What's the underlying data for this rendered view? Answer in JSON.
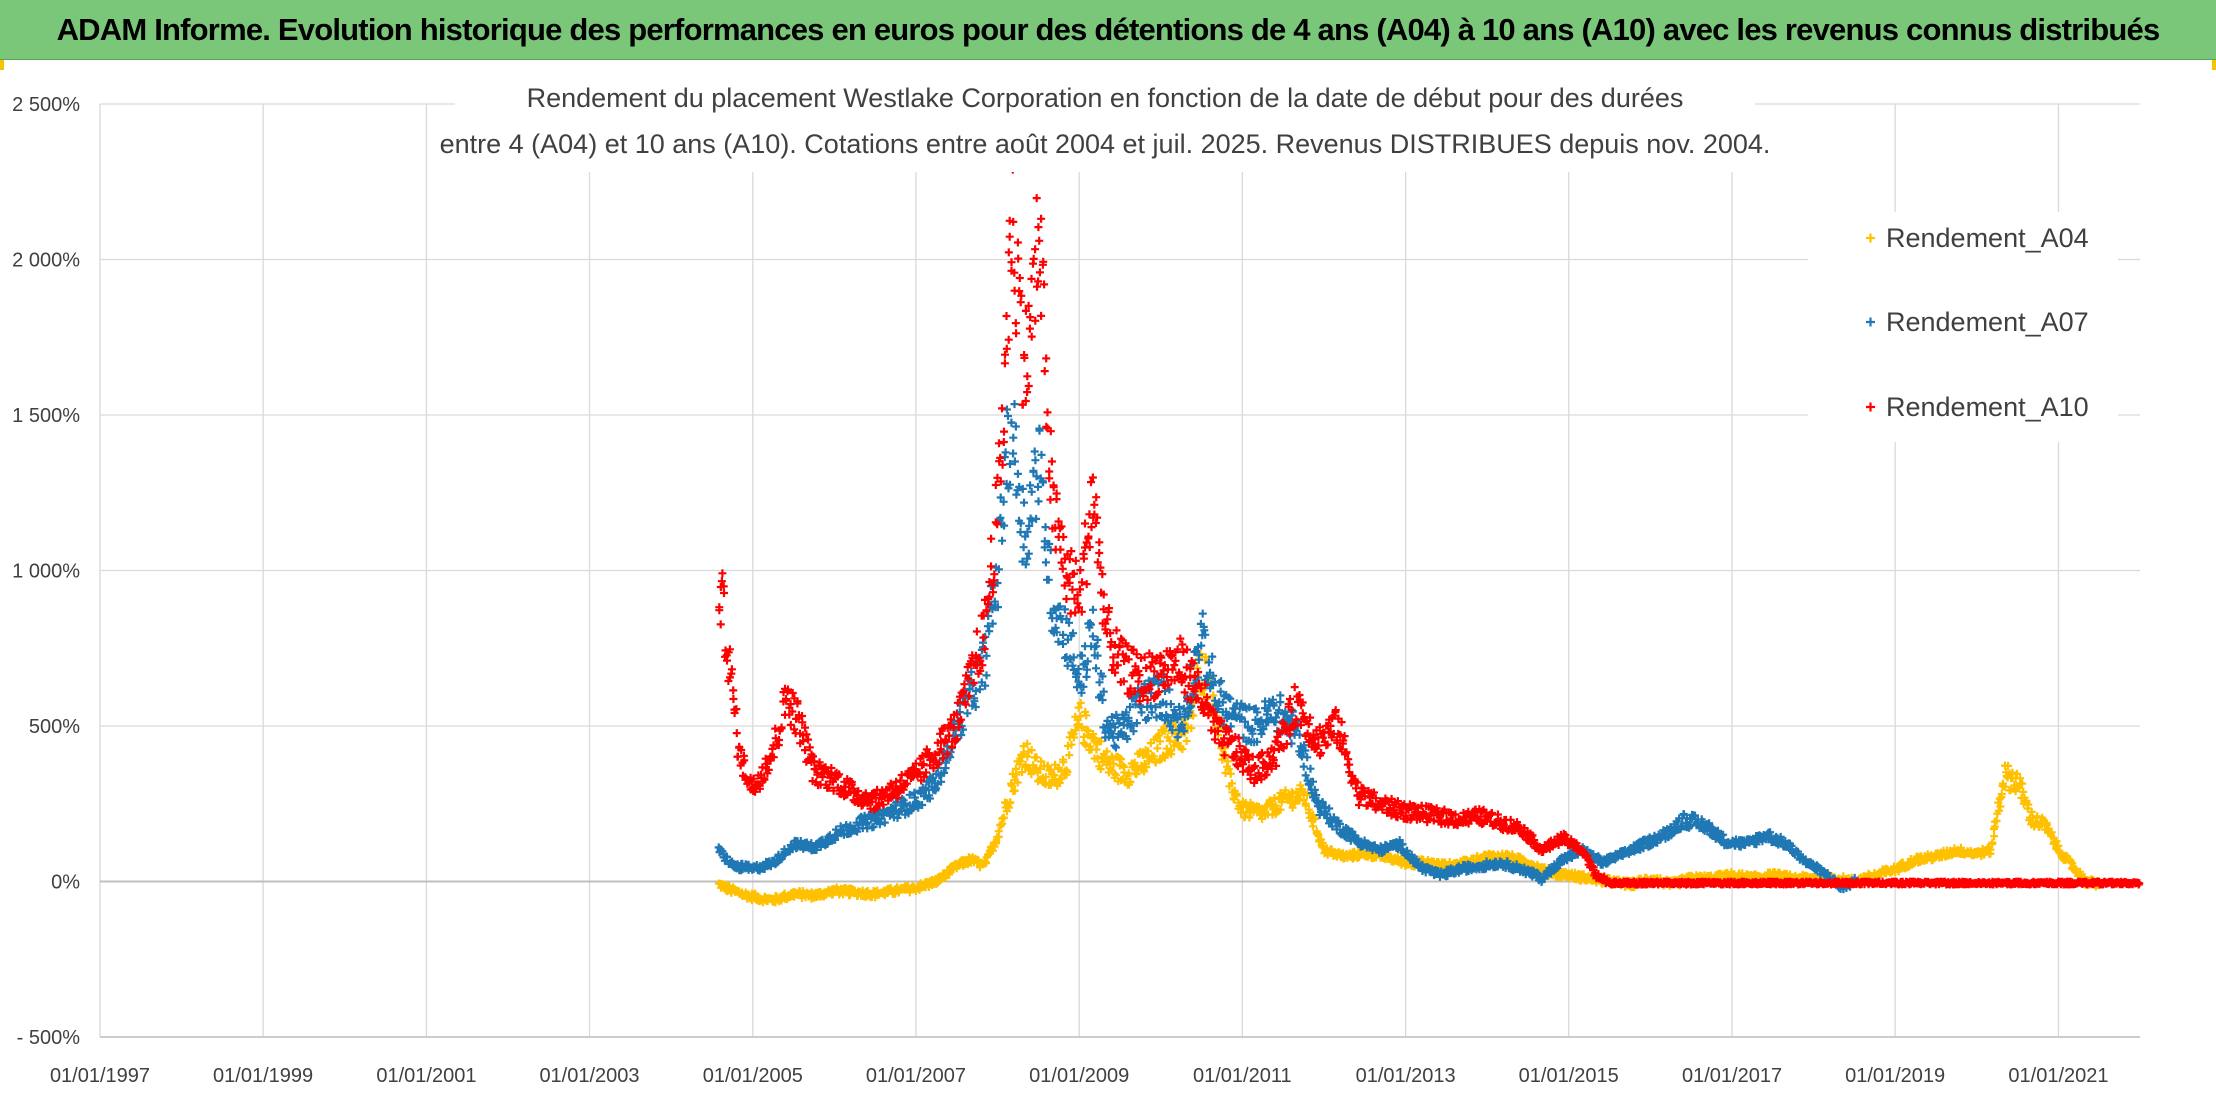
{
  "banner": {
    "title": "ADAM Informe. Evolution historique des performances en euros pour des détentions de 4 ans (A04) à 10 ans (A10) avec les revenus connus distribués"
  },
  "colors": {
    "banner": "#7ac77a",
    "accent": "#f3c400",
    "A04": "#ffc000",
    "A07": "#1f77b4",
    "A10": "#ff0000",
    "grid": "#d9d9d9",
    "text": "#404040"
  },
  "chart_data": {
    "type": "scatter",
    "title_lines": [
      "Rendement du placement Westlake Corporation en fonction de la date de début pour des durées",
      "entre 4 (A04) et 10 ans (A10). Cotations entre août 2004 et juil. 2025. Revenus DISTRIBUES depuis nov. 2004."
    ],
    "xlabel": "",
    "ylabel": "",
    "x_range": [
      "1997-01-01",
      "2022-01-01"
    ],
    "x_ticks": [
      "01/01/1997",
      "01/01/1999",
      "01/01/2001",
      "01/01/2003",
      "01/01/2005",
      "01/01/2007",
      "01/01/2009",
      "01/01/2011",
      "01/01/2013",
      "01/01/2015",
      "01/01/2017",
      "01/01/2019",
      "01/01/2021"
    ],
    "y_range": [
      -500,
      2500
    ],
    "y_ticks": [
      -500,
      0,
      500,
      1000,
      1500,
      2000,
      2500
    ],
    "y_tick_labels": [
      "- 500%",
      "0%",
      "500%",
      "1 000%",
      "1 500%",
      "2 000%",
      "2 500%"
    ],
    "grid": true,
    "legend_position": "top-right",
    "marker": "+",
    "series": [
      {
        "name": "Rendement_A04",
        "color": "#ffc000",
        "end": "2021-07-01",
        "points": [
          [
            "2004-08-01",
            -10
          ],
          [
            "2004-10-01",
            -30
          ],
          [
            "2005-01-01",
            -50
          ],
          [
            "2005-04-01",
            -60
          ],
          [
            "2005-07-01",
            -40
          ],
          [
            "2005-10-01",
            -45
          ],
          [
            "2006-01-01",
            -30
          ],
          [
            "2006-04-01",
            -35
          ],
          [
            "2006-07-01",
            -40
          ],
          [
            "2006-10-01",
            -30
          ],
          [
            "2007-01-01",
            -20
          ],
          [
            "2007-04-01",
            0
          ],
          [
            "2007-07-01",
            50
          ],
          [
            "2007-09-01",
            70
          ],
          [
            "2007-11-01",
            50
          ],
          [
            "2008-01-01",
            150
          ],
          [
            "2008-03-01",
            300
          ],
          [
            "2008-05-01",
            420
          ],
          [
            "2008-07-01",
            350
          ],
          [
            "2008-09-01",
            330
          ],
          [
            "2008-11-01",
            380
          ],
          [
            "2009-01-01",
            520
          ],
          [
            "2009-03-01",
            450
          ],
          [
            "2009-05-01",
            380
          ],
          [
            "2009-08-01",
            350
          ],
          [
            "2009-11-01",
            390
          ],
          [
            "2010-02-01",
            460
          ],
          [
            "2010-05-01",
            480
          ],
          [
            "2010-07-01",
            700
          ],
          [
            "2010-09-01",
            550
          ],
          [
            "2010-11-01",
            320
          ],
          [
            "2011-01-01",
            230
          ],
          [
            "2011-04-01",
            220
          ],
          [
            "2011-07-01",
            260
          ],
          [
            "2011-10-01",
            280
          ],
          [
            "2012-01-01",
            100
          ],
          [
            "2012-04-01",
            80
          ],
          [
            "2012-07-01",
            90
          ],
          [
            "2012-10-01",
            80
          ],
          [
            "2013-01-01",
            60
          ],
          [
            "2013-04-01",
            60
          ],
          [
            "2013-07-01",
            50
          ],
          [
            "2013-10-01",
            60
          ],
          [
            "2014-01-01",
            80
          ],
          [
            "2014-04-01",
            80
          ],
          [
            "2014-07-01",
            60
          ],
          [
            "2014-10-01",
            30
          ],
          [
            "2015-01-01",
            20
          ],
          [
            "2015-04-01",
            10
          ],
          [
            "2015-07-01",
            0
          ],
          [
            "2015-10-01",
            -10
          ],
          [
            "2016-01-01",
            10
          ],
          [
            "2016-04-01",
            -10
          ],
          [
            "2016-07-01",
            10
          ],
          [
            "2016-10-01",
            10
          ],
          [
            "2017-01-01",
            20
          ],
          [
            "2017-04-01",
            10
          ],
          [
            "2017-07-01",
            20
          ],
          [
            "2017-10-01",
            10
          ],
          [
            "2018-01-01",
            10
          ],
          [
            "2018-04-01",
            10
          ],
          [
            "2018-07-01",
            0
          ],
          [
            "2018-10-01",
            20
          ],
          [
            "2019-01-01",
            40
          ],
          [
            "2019-04-01",
            70
          ],
          [
            "2019-07-01",
            80
          ],
          [
            "2019-10-01",
            100
          ],
          [
            "2020-01-01",
            90
          ],
          [
            "2020-03-01",
            100
          ],
          [
            "2020-05-01",
            340
          ],
          [
            "2020-07-01",
            320
          ],
          [
            "2020-09-01",
            200
          ],
          [
            "2020-11-01",
            180
          ],
          [
            "2021-01-01",
            100
          ],
          [
            "2021-03-01",
            50
          ],
          [
            "2021-05-01",
            0
          ],
          [
            "2021-07-01",
            -10
          ]
        ]
      },
      {
        "name": "Rendement_A07",
        "color": "#1f77b4",
        "end": "2018-07-01",
        "points": [
          [
            "2004-08-01",
            100
          ],
          [
            "2004-10-01",
            50
          ],
          [
            "2005-01-01",
            40
          ],
          [
            "2005-04-01",
            60
          ],
          [
            "2005-07-01",
            120
          ],
          [
            "2005-10-01",
            110
          ],
          [
            "2006-01-01",
            150
          ],
          [
            "2006-04-01",
            180
          ],
          [
            "2006-07-01",
            200
          ],
          [
            "2006-10-01",
            230
          ],
          [
            "2007-01-01",
            260
          ],
          [
            "2007-04-01",
            320
          ],
          [
            "2007-07-01",
            500
          ],
          [
            "2007-09-01",
            600
          ],
          [
            "2007-11-01",
            700
          ],
          [
            "2008-01-01",
            1000
          ],
          [
            "2008-02-01",
            1300
          ],
          [
            "2008-03-01",
            1480
          ],
          [
            "2008-05-01",
            1100
          ],
          [
            "2008-07-01",
            1350
          ],
          [
            "2008-09-01",
            900
          ],
          [
            "2008-11-01",
            800
          ],
          [
            "2009-01-01",
            650
          ],
          [
            "2009-03-01",
            800
          ],
          [
            "2009-05-01",
            500
          ],
          [
            "2009-07-01",
            470
          ],
          [
            "2009-10-01",
            580
          ],
          [
            "2010-01-01",
            600
          ],
          [
            "2010-04-01",
            500
          ],
          [
            "2010-07-01",
            780
          ],
          [
            "2010-09-01",
            600
          ],
          [
            "2010-12-01",
            520
          ],
          [
            "2011-03-01",
            500
          ],
          [
            "2011-06-01",
            550
          ],
          [
            "2011-09-01",
            480
          ],
          [
            "2011-12-01",
            250
          ],
          [
            "2012-03-01",
            180
          ],
          [
            "2012-06-01",
            130
          ],
          [
            "2012-09-01",
            100
          ],
          [
            "2012-12-01",
            120
          ],
          [
            "2013-03-01",
            50
          ],
          [
            "2013-06-01",
            20
          ],
          [
            "2013-09-01",
            40
          ],
          [
            "2013-12-01",
            50
          ],
          [
            "2014-03-01",
            60
          ],
          [
            "2014-06-01",
            40
          ],
          [
            "2014-09-01",
            10
          ],
          [
            "2014-12-01",
            70
          ],
          [
            "2015-03-01",
            100
          ],
          [
            "2015-06-01",
            60
          ],
          [
            "2015-09-01",
            90
          ],
          [
            "2015-12-01",
            120
          ],
          [
            "2016-03-01",
            150
          ],
          [
            "2016-06-01",
            200
          ],
          [
            "2016-09-01",
            180
          ],
          [
            "2016-12-01",
            130
          ],
          [
            "2017-03-01",
            120
          ],
          [
            "2017-06-01",
            150
          ],
          [
            "2017-09-01",
            120
          ],
          [
            "2017-12-01",
            60
          ],
          [
            "2018-03-01",
            20
          ],
          [
            "2018-05-01",
            -20
          ],
          [
            "2018-07-01",
            0
          ]
        ]
      },
      {
        "name": "Rendement_A10",
        "color": "#ff0000",
        "end": "2015-07-01",
        "flat_until": "2021-12-31",
        "flat_value": -5,
        "points": [
          [
            "2004-08-01",
            960
          ],
          [
            "2004-09-01",
            800
          ],
          [
            "2004-10-01",
            600
          ],
          [
            "2004-11-01",
            400
          ],
          [
            "2005-01-01",
            300
          ],
          [
            "2005-04-01",
            420
          ],
          [
            "2005-06-01",
            600
          ],
          [
            "2005-08-01",
            500
          ],
          [
            "2005-10-01",
            350
          ],
          [
            "2006-01-01",
            330
          ],
          [
            "2006-04-01",
            280
          ],
          [
            "2006-07-01",
            260
          ],
          [
            "2006-10-01",
            300
          ],
          [
            "2007-01-01",
            340
          ],
          [
            "2007-04-01",
            420
          ],
          [
            "2007-07-01",
            500
          ],
          [
            "2007-09-01",
            650
          ],
          [
            "2007-11-01",
            800
          ],
          [
            "2008-01-01",
            1200
          ],
          [
            "2008-02-01",
            1600
          ],
          [
            "2008-03-01",
            2150
          ],
          [
            "2008-05-01",
            1650
          ],
          [
            "2008-06-01",
            1800
          ],
          [
            "2008-07-01",
            2100
          ],
          [
            "2008-09-01",
            1200
          ],
          [
            "2008-11-01",
            1000
          ],
          [
            "2009-01-01",
            900
          ],
          [
            "2009-03-01",
            1250
          ],
          [
            "2009-05-01",
            800
          ],
          [
            "2009-07-01",
            700
          ],
          [
            "2009-10-01",
            650
          ],
          [
            "2010-01-01",
            680
          ],
          [
            "2010-04-01",
            700
          ],
          [
            "2010-07-01",
            600
          ],
          [
            "2010-09-01",
            480
          ],
          [
            "2010-12-01",
            420
          ],
          [
            "2011-03-01",
            350
          ],
          [
            "2011-06-01",
            420
          ],
          [
            "2011-09-01",
            580
          ],
          [
            "2011-12-01",
            450
          ],
          [
            "2012-03-01",
            500
          ],
          [
            "2012-06-01",
            280
          ],
          [
            "2012-09-01",
            250
          ],
          [
            "2012-12-01",
            230
          ],
          [
            "2013-03-01",
            220
          ],
          [
            "2013-06-01",
            210
          ],
          [
            "2013-09-01",
            200
          ],
          [
            "2013-12-01",
            210
          ],
          [
            "2014-03-01",
            190
          ],
          [
            "2014-06-01",
            170
          ],
          [
            "2014-09-01",
            100
          ],
          [
            "2014-12-01",
            140
          ],
          [
            "2015-03-01",
            100
          ],
          [
            "2015-05-01",
            20
          ],
          [
            "2015-07-01",
            -5
          ]
        ]
      }
    ]
  }
}
